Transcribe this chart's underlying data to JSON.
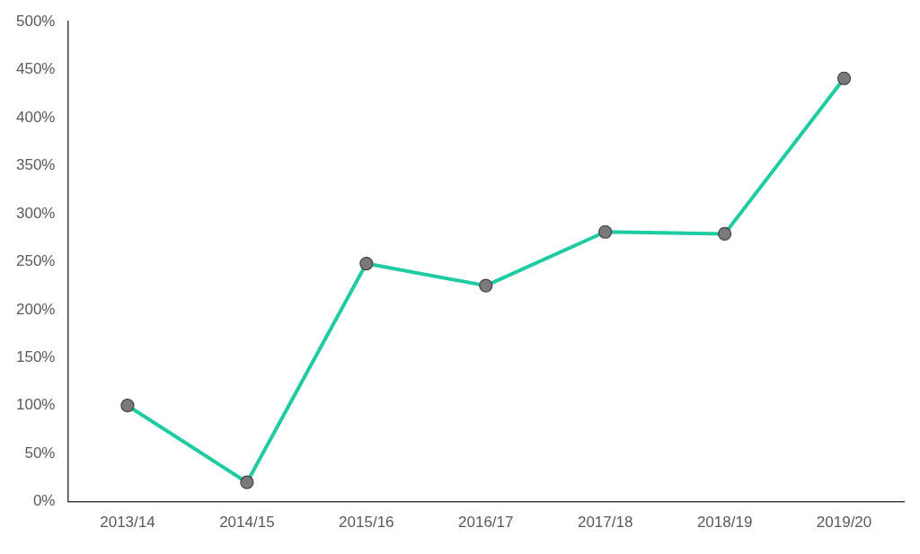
{
  "chart_data": {
    "type": "line",
    "categories": [
      "2013/14",
      "2014/15",
      "2015/16",
      "2016/17",
      "2017/18",
      "2018/19",
      "2019/20"
    ],
    "series": [
      {
        "color": "#1fcba0",
        "values": [
          100,
          20,
          248,
          225,
          281,
          279,
          441
        ]
      }
    ],
    "ylim": [
      0,
      500
    ],
    "yticks": [
      {
        "value": 0,
        "label": "0%"
      },
      {
        "value": 50,
        "label": "50%"
      },
      {
        "value": 100,
        "label": "100%"
      },
      {
        "value": 150,
        "label": "150%"
      },
      {
        "value": 200,
        "label": "200%"
      },
      {
        "value": 250,
        "label": "250%"
      },
      {
        "value": 300,
        "label": "300%"
      },
      {
        "value": 350,
        "label": "350%"
      },
      {
        "value": 400,
        "label": "400%"
      },
      {
        "value": 450,
        "label": "450%"
      },
      {
        "value": 500,
        "label": "500%"
      }
    ],
    "grid": false,
    "legend": false,
    "marker": "circle",
    "line_style": "solid"
  }
}
